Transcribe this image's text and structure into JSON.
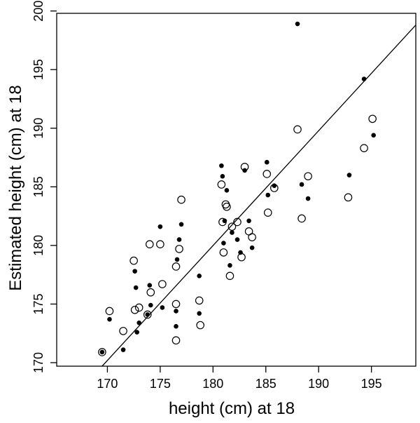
{
  "chart_data": {
    "type": "scatter",
    "title": "",
    "xlabel": "height (cm) at 18",
    "ylabel": "Estimated height (cm) at 18",
    "xlim": [
      165.2,
      199.2
    ],
    "ylim": [
      169.7,
      199.8
    ],
    "xticks": [
      170,
      175,
      180,
      185,
      190,
      195
    ],
    "yticks": [
      170,
      175,
      180,
      185,
      190,
      195,
      200
    ],
    "grid": false,
    "legend": "none",
    "reference_line": {
      "x": [
        169.5,
        199.2
      ],
      "y": [
        169.7,
        198.8
      ]
    },
    "series": [
      {
        "marker": "filled-circle",
        "color": "#000000",
        "x": [
          169.5,
          170.2,
          171.5,
          172.6,
          172.7,
          172.8,
          173.0,
          173.8,
          174.0,
          174.1,
          175.0,
          175.2,
          176.5,
          176.5,
          176.6,
          176.8,
          177.0,
          178.7,
          178.7,
          180.8,
          180.9,
          181.0,
          181.1,
          181.3,
          181.6,
          181.8,
          182.3,
          182.6,
          183.0,
          183.4,
          183.7,
          185.1,
          185.2,
          185.8,
          188.0,
          188.4,
          189.0,
          192.9,
          194.3,
          195.2
        ],
        "y": [
          170.9,
          173.7,
          171.1,
          177.8,
          176.4,
          172.6,
          173.4,
          174.1,
          176.6,
          174.9,
          181.6,
          174.7,
          174.4,
          173.1,
          178.8,
          180.5,
          181.8,
          177.4,
          174.2,
          186.8,
          185.9,
          180.2,
          182.1,
          184.7,
          178.3,
          181.1,
          180.5,
          179.4,
          186.4,
          182.1,
          179.8,
          187.1,
          184.3,
          185.1,
          198.9,
          185.2,
          184.0,
          186.0,
          194.2,
          189.4
        ]
      },
      {
        "marker": "open-circle",
        "color": "#000000",
        "x": [
          169.5,
          170.2,
          171.5,
          172.5,
          172.6,
          173.0,
          173.8,
          174.0,
          174.1,
          175.0,
          175.2,
          176.5,
          176.5,
          176.5,
          176.8,
          177.0,
          178.7,
          178.8,
          180.8,
          180.9,
          181.0,
          181.2,
          181.3,
          181.6,
          181.8,
          182.3,
          182.7,
          183.0,
          183.4,
          183.7,
          185.1,
          185.2,
          185.8,
          188.0,
          188.4,
          189.0,
          192.8,
          194.3,
          195.1
        ],
        "y": [
          170.9,
          174.4,
          172.7,
          178.7,
          174.5,
          174.7,
          174.1,
          180.1,
          176.0,
          180.1,
          176.7,
          175.0,
          178.2,
          171.9,
          179.7,
          183.9,
          175.3,
          173.2,
          185.2,
          182.0,
          179.4,
          183.5,
          183.3,
          177.4,
          181.6,
          182.0,
          179.0,
          186.7,
          181.2,
          180.7,
          186.1,
          182.8,
          184.9,
          189.9,
          182.3,
          185.9,
          184.1,
          188.3,
          190.8
        ]
      }
    ]
  }
}
